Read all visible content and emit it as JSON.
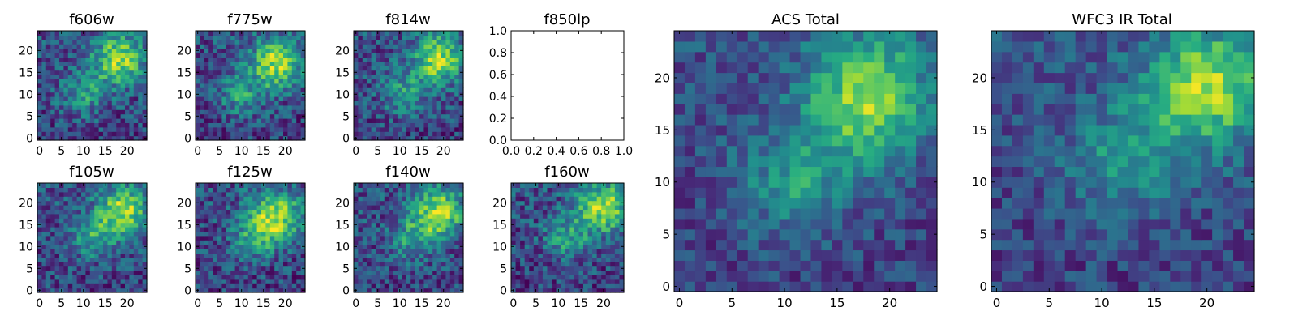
{
  "figure_colors": {
    "background": "#ffffff",
    "axes_edge": "#000000",
    "colormap": "viridis"
  },
  "chart_data": [
    {
      "type": "heatmap",
      "title": "f606w",
      "xlim": [
        -0.5,
        24.5
      ],
      "ylim": [
        -0.5,
        24.5
      ],
      "xticks": [
        0,
        5,
        10,
        15,
        20
      ],
      "yticks": [
        0,
        5,
        10,
        15,
        20
      ],
      "hotspots": [
        [
          18,
          18
        ],
        [
          10,
          10
        ]
      ],
      "empty": false
    },
    {
      "type": "heatmap",
      "title": "f775w",
      "xlim": [
        -0.5,
        24.5
      ],
      "ylim": [
        -0.5,
        24.5
      ],
      "xticks": [
        0,
        5,
        10,
        15,
        20
      ],
      "yticks": [
        0,
        5,
        10,
        15,
        20
      ],
      "hotspots": [
        [
          18,
          17
        ],
        [
          10,
          10
        ]
      ],
      "empty": false
    },
    {
      "type": "heatmap",
      "title": "f814w",
      "xlim": [
        -0.5,
        24.5
      ],
      "ylim": [
        -0.5,
        24.5
      ],
      "xticks": [
        0,
        5,
        10,
        15,
        20
      ],
      "yticks": [
        0,
        5,
        10,
        15,
        20
      ],
      "hotspots": [
        [
          19,
          18
        ],
        [
          11,
          10
        ]
      ],
      "empty": false
    },
    {
      "type": "line",
      "title": "f850lp",
      "xlim": [
        0.0,
        1.0
      ],
      "ylim": [
        0.0,
        1.0
      ],
      "xticks": [
        "0.0",
        "0.2",
        "0.4",
        "0.6",
        "0.8",
        "1.0"
      ],
      "yticks": [
        "0.0",
        "0.2",
        "0.4",
        "0.6",
        "0.8",
        "1.0"
      ],
      "series": [],
      "empty": true
    },
    {
      "type": "heatmap",
      "title": "ACS Total",
      "xlim": [
        -0.5,
        24.5
      ],
      "ylim": [
        -0.5,
        24.5
      ],
      "xticks": [
        0,
        5,
        10,
        15,
        20
      ],
      "yticks": [
        0,
        5,
        10,
        15,
        20
      ],
      "hotspots": [
        [
          18,
          18
        ],
        [
          11,
          10
        ]
      ],
      "empty": false
    },
    {
      "type": "heatmap",
      "title": "f105w",
      "xlim": [
        -0.5,
        24.5
      ],
      "ylim": [
        -0.5,
        24.5
      ],
      "xticks": [
        0,
        5,
        10,
        15,
        20
      ],
      "yticks": [
        0,
        5,
        10,
        15,
        20
      ],
      "hotspots": [
        [
          19,
          18
        ],
        [
          12,
          12
        ]
      ],
      "empty": false
    },
    {
      "type": "heatmap",
      "title": "f125w",
      "xlim": [
        -0.5,
        24.5
      ],
      "ylim": [
        -0.5,
        24.5
      ],
      "xticks": [
        0,
        5,
        10,
        15,
        20
      ],
      "yticks": [
        0,
        5,
        10,
        15,
        20
      ],
      "hotspots": [
        [
          18,
          17
        ],
        [
          13,
          12
        ]
      ],
      "empty": false
    },
    {
      "type": "heatmap",
      "title": "f140w",
      "xlim": [
        -0.5,
        24.5
      ],
      "ylim": [
        -0.5,
        24.5
      ],
      "xticks": [
        0,
        5,
        10,
        15,
        20
      ],
      "yticks": [
        0,
        5,
        10,
        15,
        20
      ],
      "hotspots": [
        [
          19,
          18
        ],
        [
          13,
          12
        ]
      ],
      "empty": false
    },
    {
      "type": "heatmap",
      "title": "f160w",
      "xlim": [
        -0.5,
        24.5
      ],
      "ylim": [
        -0.5,
        24.5
      ],
      "xticks": [
        0,
        5,
        10,
        15,
        20
      ],
      "yticks": [
        0,
        5,
        10,
        15,
        20
      ],
      "hotspots": [
        [
          20,
          19
        ],
        [
          12,
          12
        ]
      ],
      "empty": false
    },
    {
      "type": "heatmap",
      "title": "WFC3 IR Total",
      "xlim": [
        -0.5,
        24.5
      ],
      "ylim": [
        -0.5,
        24.5
      ],
      "xticks": [
        0,
        5,
        10,
        15,
        20
      ],
      "yticks": [
        0,
        5,
        10,
        15,
        20
      ],
      "hotspots": [
        [
          20,
          19
        ],
        [
          12,
          12
        ]
      ],
      "empty": false
    }
  ]
}
